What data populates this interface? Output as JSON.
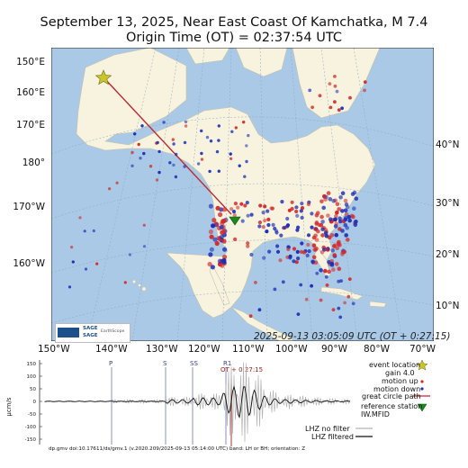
{
  "title_line1": "September 13, 2025, Near East Coast Of Kamchatka, M 7.4",
  "title_line2": "Origin Time (OT) = 02:37:54 UTC",
  "map": {
    "timestamp": "2025-09-13 03:05:09 UTC (OT + 0:27:15)",
    "left_lon_labels": [
      "150°E",
      "160°E",
      "170°E",
      "180°",
      "170°W",
      "160°W"
    ],
    "right_lat_labels": [
      "40°N",
      "30°N",
      "20°N",
      "10°N"
    ],
    "bottom_lon_labels": [
      "150°W",
      "140°W",
      "130°W",
      "120°W",
      "110°W",
      "100°W",
      "90°W",
      "80°W",
      "70°W"
    ],
    "logo_text": [
      "SAGE",
      "SAGE",
      "EarthScope"
    ],
    "colors": {
      "ocean": "#a9c9e6",
      "land": "#f7f3df",
      "motion_up": "#d42a2a",
      "motion_down": "#1b2fb8",
      "great_circle": "#c0272d",
      "event_star": "#c9c52a",
      "reference_station": "#1a8a1a"
    }
  },
  "waveform": {
    "ylabel": "μcm/s",
    "yticks": [
      "150",
      "100",
      "50",
      "0",
      "-50",
      "-100",
      "-150"
    ],
    "phases": [
      "P",
      "S",
      "SS",
      "R1"
    ],
    "ot_marker": "OT + 0:27:15"
  },
  "legend": {
    "event_location": "event location",
    "gain": "gain",
    "gain_value": "4.0",
    "motion_up": "motion up",
    "motion_down": "motion down",
    "great_circle_path": "great circle path",
    "reference_station": "reference station",
    "reference_station_id": "IW.MFID",
    "lhz_no_filter": "LHZ no filter",
    "lhz_filtered": "LHZ filtered"
  },
  "footer": "dp.gmv doi:10.17611/ds/gmv.1 (v.2020.209/2025-09-13 05:14:00 UTC) band: LH or BH; orientation: Z"
}
